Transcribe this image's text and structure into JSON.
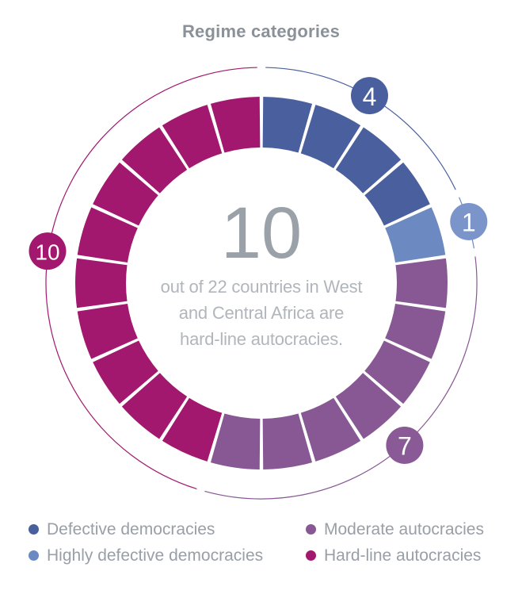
{
  "title": "Regime categories",
  "center": {
    "big_number": "10",
    "caption_lines": [
      "out of 22 countries in West",
      "and Central Africa are",
      "hard-line autocracies."
    ]
  },
  "chart_data": {
    "type": "donut",
    "title": "Regime categories",
    "total": 22,
    "start_angle_deg": 0,
    "direction": "clockwise",
    "legend_position": "bottom",
    "center_label": "10 out of 22 countries in West and Central Africa are hard-line autocracies.",
    "categories": [
      {
        "label": "Defective democracies",
        "value": 4,
        "color": "#4a5f9d",
        "badge_color": "#4a5f9d",
        "badge_angle_deg": 30.0
      },
      {
        "label": "Highly defective democracies",
        "value": 1,
        "color": "#6c89c2",
        "badge_color": "#7b94ca",
        "badge_angle_deg": 73.5
      },
      {
        "label": "Moderate autocracies",
        "value": 7,
        "color": "#875893",
        "badge_color": "#8a5a96",
        "badge_angle_deg": 138.5
      },
      {
        "label": "Hard-line autocracies",
        "value": 10,
        "color": "#a2186e",
        "badge_color": "#a2186e",
        "badge_angle_deg": 278.5
      }
    ]
  }
}
